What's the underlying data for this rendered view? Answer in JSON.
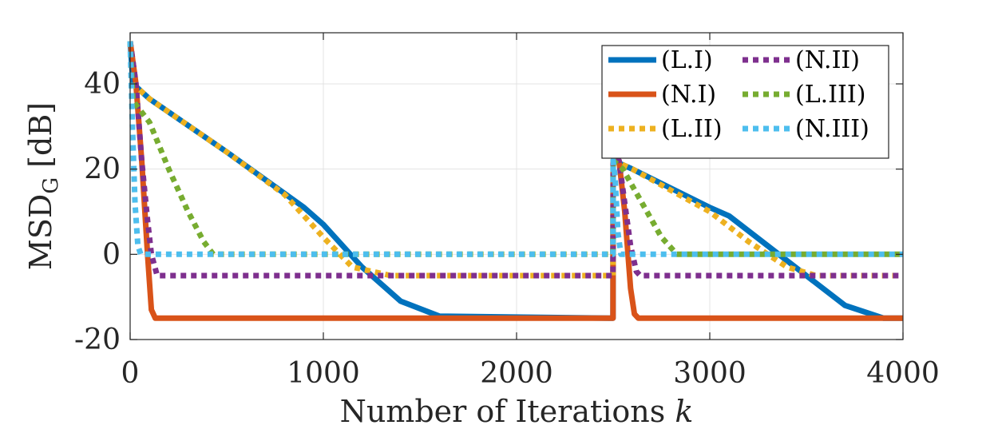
{
  "chart_data": {
    "type": "line",
    "title": "",
    "xlabel": "Number of Iterations",
    "xlabel_var": "k",
    "ylabel_main": "MSD",
    "ylabel_sub": "G",
    "ylabel_unit": "[dB]",
    "xlim": [
      0,
      4000
    ],
    "ylim": [
      -20,
      52
    ],
    "xticks": [
      0,
      1000,
      2000,
      3000,
      4000
    ],
    "yticks": [
      -20,
      0,
      20,
      40
    ],
    "xtick_labels": [
      "0",
      "1000",
      "2000",
      "3000",
      "4000"
    ],
    "ytick_labels": [
      "-20",
      "0",
      "20",
      "40"
    ],
    "grid": true,
    "legend_position": "top-right",
    "legend_columns": 2,
    "series": [
      {
        "name": "(L.I)",
        "color": "#0072BD",
        "style": "solid",
        "points": [
          [
            0,
            50
          ],
          [
            15,
            40
          ],
          [
            100,
            36.5
          ],
          [
            500,
            24
          ],
          [
            900,
            11
          ],
          [
            1000,
            7
          ],
          [
            1200,
            -3
          ],
          [
            1400,
            -11
          ],
          [
            1600,
            -14.5
          ],
          [
            2499,
            -15
          ],
          [
            2500,
            22
          ],
          [
            2600,
            20
          ],
          [
            3000,
            11
          ],
          [
            3100,
            9
          ],
          [
            3300,
            2
          ],
          [
            3500,
            -5
          ],
          [
            3700,
            -12
          ],
          [
            3900,
            -15
          ],
          [
            4000,
            -15
          ]
        ]
      },
      {
        "name": "(N.I)",
        "color": "#D95319",
        "style": "solid",
        "points": [
          [
            0,
            50
          ],
          [
            30,
            40
          ],
          [
            60,
            22
          ],
          [
            90,
            0
          ],
          [
            110,
            -13
          ],
          [
            130,
            -15
          ],
          [
            2499,
            -15
          ],
          [
            2500,
            22
          ],
          [
            2530,
            22
          ],
          [
            2560,
            10
          ],
          [
            2590,
            -8
          ],
          [
            2610,
            -14
          ],
          [
            2630,
            -15
          ],
          [
            4000,
            -15
          ]
        ]
      },
      {
        "name": "(L.II)",
        "color": "#EDB120",
        "style": "dotted",
        "points": [
          [
            0,
            50
          ],
          [
            15,
            40
          ],
          [
            100,
            36.5
          ],
          [
            500,
            24
          ],
          [
            800,
            14
          ],
          [
            1000,
            4
          ],
          [
            1150,
            -3
          ],
          [
            1350,
            -5
          ],
          [
            2499,
            -5
          ],
          [
            2500,
            22
          ],
          [
            2600,
            20
          ],
          [
            3000,
            10
          ],
          [
            3200,
            3
          ],
          [
            3400,
            -3
          ],
          [
            3550,
            -5
          ],
          [
            4000,
            -5
          ]
        ]
      },
      {
        "name": "(N.II)",
        "color": "#7E2F8E",
        "style": "dotted",
        "points": [
          [
            0,
            50
          ],
          [
            30,
            40
          ],
          [
            60,
            22
          ],
          [
            90,
            8
          ],
          [
            110,
            0
          ],
          [
            140,
            -5
          ],
          [
            2499,
            -5
          ],
          [
            2500,
            22
          ],
          [
            2530,
            22
          ],
          [
            2560,
            12
          ],
          [
            2590,
            2
          ],
          [
            2620,
            -4
          ],
          [
            2640,
            -5
          ],
          [
            4000,
            -5
          ]
        ]
      },
      {
        "name": "(L.III)",
        "color": "#77AC30",
        "style": "dotted",
        "points": [
          [
            0,
            50
          ],
          [
            15,
            36
          ],
          [
            100,
            31
          ],
          [
            200,
            20
          ],
          [
            300,
            10
          ],
          [
            380,
            3
          ],
          [
            430,
            0
          ],
          [
            2499,
            0
          ],
          [
            2500,
            22
          ],
          [
            2550,
            20
          ],
          [
            2650,
            12
          ],
          [
            2750,
            4
          ],
          [
            2830,
            0
          ],
          [
            4000,
            0
          ]
        ]
      },
      {
        "name": "(N.III)",
        "color": "#4DBEEE",
        "style": "dotted",
        "points": [
          [
            0,
            50
          ],
          [
            12,
            30
          ],
          [
            25,
            12
          ],
          [
            40,
            2
          ],
          [
            55,
            0
          ],
          [
            2499,
            0
          ],
          [
            2500,
            22
          ],
          [
            2510,
            18
          ],
          [
            2525,
            5
          ],
          [
            2540,
            0
          ],
          [
            4000,
            0
          ]
        ]
      }
    ]
  }
}
